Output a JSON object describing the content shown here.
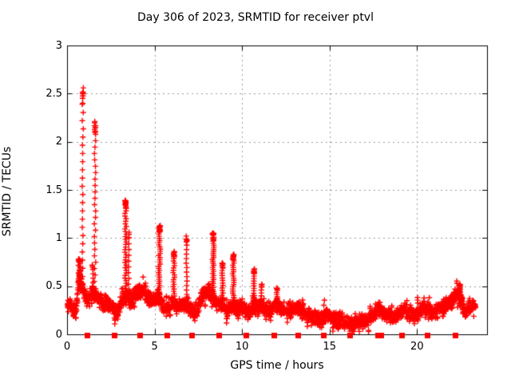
{
  "chart_data": {
    "type": "scatter",
    "title": "Day 306 of 2023, SRMTID for receiver ptvl",
    "xlabel": "GPS time / hours",
    "ylabel": "SRMTID / TECUs",
    "xlim": [
      0,
      24
    ],
    "ylim": [
      0,
      3
    ],
    "grid": true,
    "grid_color": "#9a9a9a",
    "marker": "plus",
    "marker_color": "#ff0000",
    "axis_color": "#000000",
    "xticks": {
      "values": [
        0,
        5,
        10,
        15,
        20
      ],
      "labels": [
        "0",
        "5",
        "10",
        "15",
        "20"
      ]
    },
    "yticks": {
      "values": [
        0,
        0.5,
        1,
        1.5,
        2,
        2.5,
        3
      ],
      "labels": [
        "0",
        "0.5",
        "1",
        "1.5",
        "2",
        "2.5",
        "3"
      ]
    },
    "series": [
      {
        "name": "srmtid-scatter",
        "marker": "plus",
        "color": "#ff0000",
        "t_start": 0.02,
        "t_end": 23.35,
        "noise_spread": 0.045,
        "seed": 42,
        "baseline": [
          [
            0,
            0.3
          ],
          [
            0.2,
            0.32
          ],
          [
            0.35,
            0.26
          ],
          [
            0.5,
            0.22
          ],
          [
            0.6,
            0.42
          ],
          [
            0.7,
            0.62
          ],
          [
            0.8,
            0.55
          ],
          [
            0.95,
            0.42
          ],
          [
            1.1,
            0.36
          ],
          [
            1.3,
            0.36
          ],
          [
            1.45,
            0.42
          ],
          [
            1.7,
            0.4
          ],
          [
            1.9,
            0.35
          ],
          [
            2.1,
            0.3
          ],
          [
            2.3,
            0.33
          ],
          [
            2.5,
            0.3
          ],
          [
            2.7,
            0.25
          ],
          [
            2.85,
            0.2
          ],
          [
            3.0,
            0.28
          ],
          [
            3.2,
            0.38
          ],
          [
            3.45,
            0.4
          ],
          [
            3.6,
            0.33
          ],
          [
            3.8,
            0.38
          ],
          [
            4.0,
            0.42
          ],
          [
            4.2,
            0.45
          ],
          [
            4.4,
            0.44
          ],
          [
            4.6,
            0.4
          ],
          [
            4.8,
            0.36
          ],
          [
            5.0,
            0.38
          ],
          [
            5.2,
            0.4
          ],
          [
            5.45,
            0.32
          ],
          [
            5.65,
            0.26
          ],
          [
            5.85,
            0.26
          ],
          [
            6.0,
            0.33
          ],
          [
            6.2,
            0.3
          ],
          [
            6.45,
            0.27
          ],
          [
            6.65,
            0.32
          ],
          [
            6.9,
            0.3
          ],
          [
            7.1,
            0.26
          ],
          [
            7.3,
            0.22
          ],
          [
            7.5,
            0.28
          ],
          [
            7.7,
            0.38
          ],
          [
            7.9,
            0.44
          ],
          [
            8.1,
            0.44
          ],
          [
            8.3,
            0.38
          ],
          [
            8.5,
            0.33
          ],
          [
            8.7,
            0.33
          ],
          [
            8.95,
            0.28
          ],
          [
            9.15,
            0.24
          ],
          [
            9.35,
            0.28
          ],
          [
            9.55,
            0.3
          ],
          [
            9.75,
            0.26
          ],
          [
            9.95,
            0.3
          ],
          [
            10.15,
            0.24
          ],
          [
            10.35,
            0.22
          ],
          [
            10.55,
            0.26
          ],
          [
            10.75,
            0.28
          ],
          [
            10.95,
            0.26
          ],
          [
            11.1,
            0.32
          ],
          [
            11.3,
            0.24
          ],
          [
            11.5,
            0.22
          ],
          [
            11.7,
            0.27
          ],
          [
            11.9,
            0.33
          ],
          [
            12.05,
            0.3
          ],
          [
            12.3,
            0.26
          ],
          [
            12.6,
            0.24
          ],
          [
            12.9,
            0.28
          ],
          [
            13.1,
            0.28
          ],
          [
            13.4,
            0.24
          ],
          [
            13.7,
            0.21
          ],
          [
            14.0,
            0.19
          ],
          [
            14.3,
            0.17
          ],
          [
            14.6,
            0.17
          ],
          [
            14.85,
            0.21
          ],
          [
            15.1,
            0.17
          ],
          [
            15.4,
            0.14
          ],
          [
            15.7,
            0.13
          ],
          [
            16.0,
            0.11
          ],
          [
            16.3,
            0.11
          ],
          [
            16.6,
            0.13
          ],
          [
            16.9,
            0.14
          ],
          [
            17.2,
            0.16
          ],
          [
            17.5,
            0.2
          ],
          [
            17.8,
            0.26
          ],
          [
            18.1,
            0.23
          ],
          [
            18.4,
            0.19
          ],
          [
            18.7,
            0.18
          ],
          [
            19.0,
            0.22
          ],
          [
            19.25,
            0.26
          ],
          [
            19.5,
            0.21
          ],
          [
            19.8,
            0.19
          ],
          [
            20.1,
            0.23
          ],
          [
            20.35,
            0.29
          ],
          [
            20.6,
            0.24
          ],
          [
            20.9,
            0.22
          ],
          [
            21.2,
            0.25
          ],
          [
            21.5,
            0.29
          ],
          [
            21.8,
            0.33
          ],
          [
            22.1,
            0.38
          ],
          [
            22.35,
            0.42
          ],
          [
            22.5,
            0.38
          ],
          [
            22.65,
            0.26
          ],
          [
            22.8,
            0.23
          ],
          [
            23.0,
            0.29
          ],
          [
            23.2,
            0.31
          ],
          [
            23.35,
            0.29
          ]
        ],
        "spikes": [
          {
            "t": 0.7,
            "base": 0.45,
            "peak": 0.78,
            "w": 0.14,
            "n": 22,
            "head": 0.35
          },
          {
            "t": 0.9,
            "base": 0.6,
            "peak": 2.56,
            "w": 0.07,
            "n": 24,
            "head": 0.3
          },
          {
            "t": 1.45,
            "base": 0.4,
            "peak": 0.72,
            "w": 0.08,
            "n": 8,
            "head": 0.2
          },
          {
            "t": 1.6,
            "base": 0.55,
            "peak": 2.21,
            "w": 0.08,
            "n": 26,
            "head": 0.3
          },
          {
            "t": 3.35,
            "base": 0.45,
            "peak": 1.39,
            "w": 0.09,
            "n": 36,
            "head": 0.3
          },
          {
            "t": 3.52,
            "base": 0.4,
            "peak": 1.06,
            "w": 0.05,
            "n": 12,
            "head": 0.2
          },
          {
            "t": 5.28,
            "base": 0.35,
            "peak": 1.13,
            "w": 0.1,
            "n": 36,
            "head": 0.35
          },
          {
            "t": 6.1,
            "base": 0.3,
            "peak": 0.86,
            "w": 0.08,
            "n": 24,
            "head": 0.35
          },
          {
            "t": 6.83,
            "base": 0.32,
            "peak": 1.02,
            "w": 0.06,
            "n": 16,
            "head": 0.25
          },
          {
            "t": 8.35,
            "base": 0.32,
            "peak": 1.05,
            "w": 0.09,
            "n": 36,
            "head": 0.3
          },
          {
            "t": 8.88,
            "base": 0.3,
            "peak": 0.74,
            "w": 0.06,
            "n": 18,
            "head": 0.3
          },
          {
            "t": 9.5,
            "base": 0.27,
            "peak": 0.83,
            "w": 0.08,
            "n": 26,
            "head": 0.35
          },
          {
            "t": 10.68,
            "base": 0.25,
            "peak": 0.68,
            "w": 0.06,
            "n": 18,
            "head": 0.3
          },
          {
            "t": 11.1,
            "base": 0.25,
            "peak": 0.52,
            "w": 0.06,
            "n": 10,
            "head": 0.2
          },
          {
            "t": 12.0,
            "base": 0.28,
            "peak": 0.48,
            "w": 0.07,
            "n": 10,
            "head": 0.2
          },
          {
            "t": 22.45,
            "base": 0.3,
            "peak": 0.52,
            "w": 0.09,
            "n": 14,
            "head": 0.25
          }
        ]
      },
      {
        "name": "axis-interval-markers",
        "marker": "filled-square",
        "color": "#ff0000",
        "y": 0.0,
        "x": [
          1.14,
          2.69,
          4.14,
          5.71,
          7.11,
          8.68,
          10.23,
          11.83,
          13.2,
          14.66,
          16.16,
          17.75,
          17.93,
          19.13,
          20.59,
          22.19
        ]
      }
    ]
  }
}
